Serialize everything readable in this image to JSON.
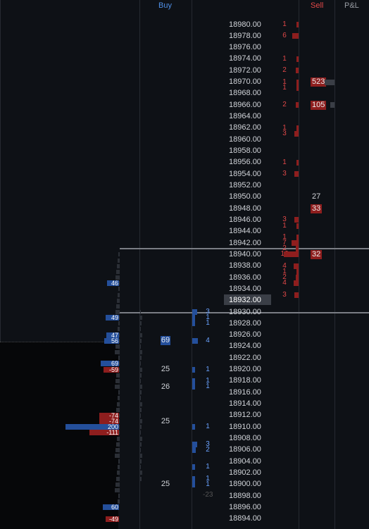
{
  "header": {
    "buy_label": "Buy",
    "sell_label": "Sell",
    "pnl_label": "P&L"
  },
  "colors": {
    "background": "#0e1116",
    "sell": "#e04848",
    "sell_bar": "#8e1e1e",
    "buy": "#6aa2ff",
    "buy_bar": "#244f9b"
  },
  "ladder": {
    "prices": [
      "18980.00",
      "18978.00",
      "18976.00",
      "18974.00",
      "18972.00",
      "18970.00",
      "18968.00",
      "18966.00",
      "18964.00",
      "18962.00",
      "18960.00",
      "18958.00",
      "18956.00",
      "18954.00",
      "18952.00",
      "18950.00",
      "18948.00",
      "18946.00",
      "18944.00",
      "18942.00",
      "18940.00",
      "18938.00",
      "18936.00",
      "18934.00",
      "18932.00",
      "18930.00",
      "18928.00",
      "18926.00",
      "18924.00",
      "18922.00",
      "18920.00",
      "18918.00",
      "18916.00",
      "18914.00",
      "18912.00",
      "18910.00",
      "18908.00",
      "18906.00",
      "18904.00",
      "18902.00",
      "18900.00",
      "18898.00",
      "18896.00",
      "18894.00"
    ],
    "current_price": "18932.00"
  },
  "sell_column": {
    "trade_counts": [
      {
        "price": "18980.00",
        "v": "1"
      },
      {
        "price": "18978.00",
        "v": "6"
      },
      {
        "price": "18974.00",
        "v": "1"
      },
      {
        "price": "18972.00",
        "v": "2"
      },
      {
        "price": "18970.00",
        "v": "1"
      },
      {
        "price": "18969.00",
        "v": "1"
      },
      {
        "price": "18966.00",
        "v": "2"
      },
      {
        "price": "18962.00",
        "v": "1"
      },
      {
        "price": "18961.00",
        "v": "3"
      },
      {
        "price": "18956.00",
        "v": "1"
      },
      {
        "price": "18954.00",
        "v": "3"
      },
      {
        "price": "18946.00",
        "v": "3"
      },
      {
        "price": "18945.00",
        "v": "1"
      },
      {
        "price": "18943.00",
        "v": "1"
      },
      {
        "price": "18942.00",
        "v": "7"
      },
      {
        "price": "18941.00",
        "v": "2"
      },
      {
        "price": "18940.00",
        "v": "16"
      },
      {
        "price": "18938.00",
        "v": "4"
      },
      {
        "price": "18937.00",
        "v": "1"
      },
      {
        "price": "18936.00",
        "v": "2"
      },
      {
        "price": "18935.00",
        "v": "4"
      },
      {
        "price": "18933.00",
        "v": "3"
      }
    ],
    "resting_orders": [
      {
        "price": "18970.00",
        "v": "523",
        "boxed": true
      },
      {
        "price": "18966.00",
        "v": "105",
        "boxed": true
      },
      {
        "price": "18950.00",
        "v": "27",
        "boxed": false
      },
      {
        "price": "18948.00",
        "v": "33",
        "boxed": true
      },
      {
        "price": "18940.00",
        "v": "32",
        "boxed": true
      }
    ]
  },
  "buy_column": {
    "trade_counts": [
      {
        "price": "18930.00",
        "v": "3"
      },
      {
        "price": "18929.00",
        "v": "1"
      },
      {
        "price": "18928.00",
        "v": "1"
      },
      {
        "price": "18925.00",
        "v": "4"
      },
      {
        "price": "18920.00",
        "v": "1"
      },
      {
        "price": "18918.00",
        "v": "1"
      },
      {
        "price": "18917.00",
        "v": "1"
      },
      {
        "price": "18910.00",
        "v": "1"
      },
      {
        "price": "18907.00",
        "v": "3"
      },
      {
        "price": "18906.00",
        "v": "2"
      },
      {
        "price": "18903.00",
        "v": "1"
      },
      {
        "price": "18901.00",
        "v": "1"
      },
      {
        "price": "18900.00",
        "v": "1"
      }
    ],
    "resting_orders": [
      {
        "price": "18925.00",
        "v": "69",
        "boxed": true
      },
      {
        "price": "18920.00",
        "v": "25",
        "boxed": false
      },
      {
        "price": "18917.00",
        "v": "26",
        "boxed": false
      },
      {
        "price": "18911.00",
        "v": "25",
        "boxed": false
      },
      {
        "price": "18900.00",
        "v": "25",
        "boxed": false
      }
    ],
    "misc_value": "-23"
  },
  "volume_profile": {
    "labels": [
      {
        "price": "18935.00",
        "v": "46",
        "side": "buy"
      },
      {
        "price": "18929.00",
        "v": "49",
        "side": "buy"
      },
      {
        "price": "18926.00",
        "v": "47",
        "side": "buy"
      },
      {
        "price": "18925.00",
        "v": "56",
        "side": "buy"
      },
      {
        "price": "18921.00",
        "v": "69",
        "side": "buy"
      },
      {
        "price": "18920.00",
        "v": "-59",
        "side": "sell"
      },
      {
        "price": "18912.00",
        "v": "-74",
        "side": "sell"
      },
      {
        "price": "18911.00",
        "v": "-74",
        "side": "sell"
      },
      {
        "price": "18910.00",
        "v": "200",
        "side": "buy"
      },
      {
        "price": "18909.00",
        "v": "-111",
        "side": "sell"
      },
      {
        "price": "18896.00",
        "v": "60",
        "side": "buy"
      },
      {
        "price": "18894.00",
        "v": "-49",
        "side": "sell"
      }
    ]
  }
}
